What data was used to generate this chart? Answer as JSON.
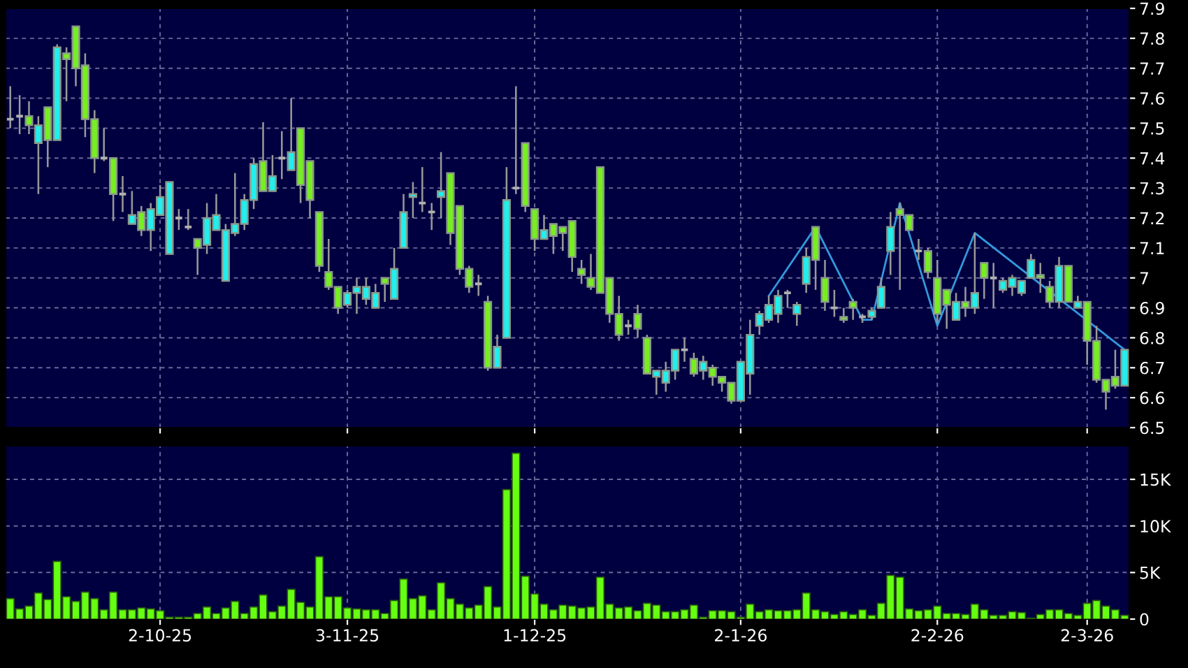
{
  "chart_data": [
    {
      "type": "candlestick",
      "categories": [
        null,
        null,
        null,
        null,
        null,
        null,
        null,
        null,
        null,
        null,
        null,
        null,
        null,
        null,
        null,
        null,
        null,
        null,
        null,
        null,
        null,
        null,
        null,
        null,
        null,
        null,
        null,
        null,
        null,
        null,
        null,
        null,
        null,
        null,
        null,
        null,
        null,
        null,
        null,
        null,
        null,
        null,
        null,
        null,
        null,
        null,
        null,
        null,
        null,
        null,
        null,
        null,
        null,
        null,
        null,
        null,
        null,
        null,
        null,
        null,
        null,
        null,
        null,
        null,
        null,
        null,
        null,
        null,
        null,
        null,
        null,
        null,
        null,
        null,
        null,
        null,
        null,
        null,
        null,
        null,
        null,
        null,
        null,
        null,
        null,
        null,
        null,
        null,
        null,
        null,
        null,
        null,
        null,
        null,
        null,
        null,
        null,
        null,
        null,
        null,
        null,
        null,
        null,
        null,
        null,
        null,
        null,
        null,
        null,
        null,
        null,
        null,
        null,
        null,
        null,
        null,
        null,
        null,
        null,
        null
      ],
      "ohlc": [
        [
          7.53,
          7.64,
          7.5,
          7.53
        ],
        [
          7.54,
          7.61,
          7.48,
          7.54
        ],
        [
          7.54,
          7.59,
          7.48,
          7.51
        ],
        [
          7.45,
          7.54,
          7.28,
          7.51
        ],
        [
          7.57,
          7.57,
          7.37,
          7.46
        ],
        [
          7.46,
          7.78,
          7.46,
          7.77
        ],
        [
          7.75,
          7.77,
          7.59,
          7.73
        ],
        [
          7.84,
          7.84,
          7.64,
          7.7
        ],
        [
          7.71,
          7.75,
          7.47,
          7.53
        ],
        [
          7.53,
          7.56,
          7.35,
          7.4
        ],
        [
          7.4,
          7.5,
          7.39,
          7.4
        ],
        [
          7.4,
          7.4,
          7.19,
          7.28
        ],
        [
          7.28,
          7.34,
          7.22,
          7.28
        ],
        [
          7.18,
          7.29,
          7.18,
          7.21
        ],
        [
          7.22,
          7.24,
          7.14,
          7.16
        ],
        [
          7.16,
          7.25,
          7.09,
          7.23
        ],
        [
          7.21,
          7.31,
          7.21,
          7.27
        ],
        [
          7.08,
          7.32,
          7.08,
          7.32
        ],
        [
          7.2,
          7.23,
          7.16,
          7.2
        ],
        [
          7.17,
          7.23,
          7.16,
          7.17
        ],
        [
          7.13,
          7.13,
          7.01,
          7.1
        ],
        [
          7.11,
          7.25,
          7.08,
          7.2
        ],
        [
          7.16,
          7.28,
          7.16,
          7.21
        ],
        [
          6.99,
          7.18,
          6.99,
          7.16
        ],
        [
          7.15,
          7.35,
          7.14,
          7.18
        ],
        [
          7.18,
          7.28,
          7.16,
          7.26
        ],
        [
          7.26,
          7.4,
          7.23,
          7.38
        ],
        [
          7.39,
          7.52,
          7.29,
          7.29
        ],
        [
          7.29,
          7.41,
          7.29,
          7.34
        ],
        [
          7.4,
          7.49,
          7.33,
          7.4
        ],
        [
          7.36,
          7.6,
          7.36,
          7.42
        ],
        [
          7.5,
          7.5,
          7.25,
          7.31
        ],
        [
          7.39,
          7.39,
          7.2,
          7.26
        ],
        [
          7.22,
          7.22,
          7.02,
          7.04
        ],
        [
          7.02,
          7.13,
          6.96,
          6.97
        ],
        [
          6.97,
          6.97,
          6.88,
          6.9
        ],
        [
          6.91,
          6.96,
          6.9,
          6.95
        ],
        [
          6.95,
          7.0,
          6.88,
          6.97
        ],
        [
          6.93,
          7.0,
          6.91,
          6.97
        ],
        [
          6.9,
          6.98,
          6.9,
          6.95
        ],
        [
          7.0,
          7.0,
          6.92,
          6.98
        ],
        [
          6.93,
          7.1,
          6.93,
          7.03
        ],
        [
          7.1,
          7.28,
          7.1,
          7.22
        ],
        [
          7.27,
          7.32,
          7.2,
          7.28
        ],
        [
          7.25,
          7.37,
          7.22,
          7.25
        ],
        [
          7.22,
          7.25,
          7.16,
          7.22
        ],
        [
          7.27,
          7.42,
          7.2,
          7.29
        ],
        [
          7.35,
          7.35,
          7.11,
          7.15
        ],
        [
          7.24,
          7.24,
          7.01,
          7.03
        ],
        [
          7.03,
          7.04,
          6.95,
          6.97
        ],
        [
          6.98,
          7.01,
          6.94,
          6.98
        ],
        [
          6.92,
          6.94,
          6.69,
          6.7
        ],
        [
          6.7,
          6.81,
          6.7,
          6.77
        ],
        [
          6.8,
          7.37,
          6.8,
          7.26
        ],
        [
          7.3,
          7.64,
          7.28,
          7.3
        ],
        [
          7.45,
          7.45,
          7.22,
          7.24
        ],
        [
          7.23,
          7.23,
          7.09,
          7.13
        ],
        [
          7.13,
          7.21,
          7.13,
          7.16
        ],
        [
          7.18,
          7.18,
          7.08,
          7.14
        ],
        [
          7.17,
          7.17,
          7.09,
          7.15
        ],
        [
          7.19,
          7.19,
          7.02,
          7.07
        ],
        [
          7.03,
          7.06,
          6.98,
          7.01
        ],
        [
          7.0,
          7.08,
          6.96,
          6.97
        ],
        [
          7.37,
          7.37,
          6.95,
          6.95
        ],
        [
          7.0,
          7.0,
          6.85,
          6.88
        ],
        [
          6.88,
          6.94,
          6.79,
          6.81
        ],
        [
          6.84,
          6.86,
          6.81,
          6.84
        ],
        [
          6.88,
          6.91,
          6.8,
          6.83
        ],
        [
          6.8,
          6.81,
          6.68,
          6.68
        ],
        [
          6.67,
          6.69,
          6.61,
          6.69
        ],
        [
          6.65,
          6.72,
          6.62,
          6.69
        ],
        [
          6.69,
          6.76,
          6.66,
          6.76
        ],
        [
          6.76,
          6.8,
          6.72,
          6.76
        ],
        [
          6.73,
          6.75,
          6.67,
          6.68
        ],
        [
          6.69,
          6.74,
          6.66,
          6.72
        ],
        [
          6.7,
          6.71,
          6.64,
          6.67
        ],
        [
          6.67,
          6.67,
          6.62,
          6.65
        ],
        [
          6.65,
          6.65,
          6.58,
          6.59
        ],
        [
          6.59,
          6.72,
          6.59,
          6.72
        ],
        [
          6.68,
          6.86,
          6.61,
          6.81
        ],
        [
          6.84,
          6.89,
          6.81,
          6.88
        ],
        [
          6.86,
          6.94,
          6.85,
          6.91
        ],
        [
          6.88,
          6.96,
          6.85,
          6.94
        ],
        [
          6.95,
          6.96,
          6.9,
          6.95
        ],
        [
          6.88,
          6.92,
          6.84,
          6.91
        ],
        [
          6.98,
          7.1,
          6.95,
          7.07
        ],
        [
          7.17,
          7.17,
          6.96,
          7.06
        ],
        [
          7.0,
          7.06,
          6.89,
          6.92
        ],
        [
          6.9,
          6.96,
          6.87,
          6.9
        ],
        [
          6.87,
          6.9,
          6.85,
          6.86
        ],
        [
          6.92,
          6.93,
          6.86,
          6.9
        ],
        [
          6.87,
          6.88,
          6.85,
          6.87
        ],
        [
          6.87,
          6.9,
          6.86,
          6.89
        ],
        [
          6.9,
          7.0,
          6.9,
          6.97
        ],
        [
          7.09,
          7.22,
          7.01,
          7.17
        ],
        [
          7.23,
          7.25,
          6.96,
          7.21
        ],
        [
          7.21,
          7.21,
          7.16,
          7.16
        ],
        [
          7.09,
          7.13,
          7.06,
          7.09
        ],
        [
          7.09,
          7.1,
          7.0,
          7.02
        ],
        [
          7.0,
          7.06,
          6.85,
          6.88
        ],
        [
          6.96,
          6.96,
          6.83,
          6.91
        ],
        [
          6.86,
          6.95,
          6.86,
          6.92
        ],
        [
          6.92,
          6.97,
          6.87,
          6.9
        ],
        [
          6.9,
          7.15,
          6.88,
          6.95
        ],
        [
          7.05,
          7.05,
          6.93,
          7.0
        ],
        [
          7.0,
          7.05,
          6.9,
          7.0
        ],
        [
          6.96,
          7.0,
          6.95,
          6.99
        ],
        [
          6.97,
          7.01,
          6.94,
          7.0
        ],
        [
          6.95,
          6.99,
          6.94,
          6.99
        ],
        [
          7.0,
          7.08,
          7.0,
          7.06
        ],
        [
          7.01,
          7.05,
          6.95,
          7.0
        ],
        [
          6.97,
          6.99,
          6.9,
          6.92
        ],
        [
          6.92,
          7.07,
          6.9,
          7.04
        ],
        [
          7.04,
          7.04,
          6.92,
          6.92
        ],
        [
          6.9,
          6.94,
          6.9,
          6.92
        ],
        [
          6.92,
          6.92,
          6.71,
          6.79
        ],
        [
          6.79,
          6.84,
          6.65,
          6.66
        ],
        [
          6.66,
          6.66,
          6.56,
          6.62
        ],
        [
          6.67,
          6.76,
          6.63,
          6.64
        ],
        [
          6.64,
          6.76,
          6.64,
          6.76
        ]
      ],
      "colors": [
        "#b0b0b0",
        "#b0b0b0",
        "#77ee22",
        "#22eeee",
        "#77ee22",
        "#22eeee",
        "#77ee22",
        "#77ee22",
        "#77ee22",
        "#77ee22",
        "#b0b0b0",
        "#77ee22",
        "#b0b0b0",
        "#22eeee",
        "#77ee22",
        "#22eeee",
        "#22eeee",
        "#22eeee",
        "#b0b0b0",
        "#b0b0b0",
        "#77ee22",
        "#22eeee",
        "#22eeee",
        "#22eeee",
        "#22eeee",
        "#22eeee",
        "#22eeee",
        "#77ee22",
        "#22eeee",
        "#b0b0b0",
        "#22eeee",
        "#77ee22",
        "#77ee22",
        "#77ee22",
        "#77ee22",
        "#77ee22",
        "#22eeee",
        "#22eeee",
        "#22eeee",
        "#22eeee",
        "#77ee22",
        "#22eeee",
        "#22eeee",
        "#22eeee",
        "#b0b0b0",
        "#b0b0b0",
        "#22eeee",
        "#77ee22",
        "#77ee22",
        "#77ee22",
        "#b0b0b0",
        "#77ee22",
        "#22eeee",
        "#22eeee",
        "#b0b0b0",
        "#77ee22",
        "#77ee22",
        "#22eeee",
        "#77ee22",
        "#77ee22",
        "#77ee22",
        "#77ee22",
        "#77ee22",
        "#77ee22",
        "#77ee22",
        "#77ee22",
        "#b0b0b0",
        "#77ee22",
        "#77ee22",
        "#22eeee",
        "#22eeee",
        "#22eeee",
        "#b0b0b0",
        "#77ee22",
        "#22eeee",
        "#77ee22",
        "#77ee22",
        "#77ee22",
        "#22eeee",
        "#22eeee",
        "#22eeee",
        "#22eeee",
        "#22eeee",
        "#b0b0b0",
        "#22eeee",
        "#22eeee",
        "#77ee22",
        "#77ee22",
        "#b0b0b0",
        "#77ee22",
        "#77ee22",
        "#b0b0b0",
        "#22eeee",
        "#22eeee",
        "#22eeee",
        "#77ee22",
        "#77ee22",
        "#b0b0b0",
        "#77ee22",
        "#77ee22",
        "#77ee22",
        "#22eeee",
        "#77ee22",
        "#22eeee",
        "#77ee22",
        "#b0b0b0",
        "#22eeee",
        "#22eeee",
        "#22eeee",
        "#22eeee",
        "#77ee22",
        "#77ee22",
        "#22eeee",
        "#77ee22",
        "#22eeee",
        "#77ee22",
        "#77ee22",
        "#77ee22",
        "#77ee22",
        "#22eeee"
      ],
      "series": [
        {
          "type": "line",
          "color": "#3399dd",
          "values": [
            null,
            null,
            null,
            null,
            null,
            null,
            null,
            null,
            null,
            null,
            null,
            null,
            null,
            null,
            null,
            null,
            null,
            null,
            null,
            null,
            null,
            null,
            null,
            null,
            null,
            null,
            null,
            null,
            null,
            null,
            null,
            null,
            null,
            null,
            null,
            null,
            null,
            null,
            null,
            null,
            null,
            null,
            null,
            null,
            null,
            null,
            null,
            null,
            null,
            null,
            null,
            null,
            null,
            null,
            null,
            null,
            null,
            null,
            null,
            null,
            null,
            null,
            null,
            null,
            null,
            null,
            null,
            null,
            null,
            null,
            null,
            null,
            null,
            null,
            null,
            null,
            null,
            null,
            null,
            null,
            null,
            6.94,
            null,
            null,
            null,
            null,
            7.17,
            null,
            null,
            null,
            null,
            6.86,
            6.86,
            null,
            null,
            7.25,
            null,
            null,
            null,
            6.84,
            null,
            null,
            null,
            7.15,
            null,
            null,
            null,
            null,
            null,
            null,
            null,
            null,
            null,
            null,
            null,
            null,
            null,
            null,
            null,
            6.76
          ]
        }
      ],
      "ylim": [
        6.5,
        7.9
      ],
      "yticks": [
        6.5,
        6.6,
        6.7,
        6.8,
        6.9,
        7,
        7.1,
        7.2,
        7.3,
        7.4,
        7.5,
        7.6,
        7.7,
        7.8,
        7.9
      ],
      "grid": true,
      "tick_labels": "y"
    },
    {
      "type": "bar",
      "categories": [
        null,
        null,
        null,
        null,
        null,
        null,
        null,
        null,
        null,
        null,
        null,
        null,
        null,
        null,
        null,
        null,
        "2-10-25",
        null,
        null,
        null,
        null,
        null,
        null,
        null,
        null,
        null,
        null,
        null,
        null,
        null,
        null,
        null,
        null,
        null,
        null,
        null,
        "3-11-25",
        null,
        null,
        null,
        null,
        null,
        null,
        null,
        null,
        null,
        null,
        null,
        null,
        null,
        null,
        null,
        null,
        null,
        null,
        null,
        "1-12-25",
        null,
        null,
        null,
        null,
        null,
        null,
        null,
        null,
        null,
        null,
        null,
        null,
        null,
        null,
        null,
        null,
        null,
        null,
        null,
        null,
        null,
        "2-1-26",
        null,
        null,
        null,
        null,
        null,
        null,
        null,
        null,
        null,
        null,
        null,
        null,
        null,
        null,
        null,
        null,
        null,
        null,
        null,
        null,
        "2-2-26",
        null,
        null,
        null,
        null,
        null,
        null,
        null,
        null,
        null,
        null,
        null,
        null,
        null,
        null,
        null,
        "2-3-26",
        null,
        null,
        null,
        null
      ],
      "values": [
        2200,
        1100,
        1400,
        2800,
        2100,
        6200,
        2400,
        1900,
        2900,
        2200,
        1000,
        2900,
        1000,
        1000,
        1200,
        1100,
        900,
        200,
        200,
        200,
        600,
        1300,
        600,
        1200,
        1900,
        600,
        1300,
        2600,
        800,
        1400,
        3200,
        1800,
        1300,
        6700,
        2400,
        2400,
        1200,
        1100,
        1000,
        1000,
        600,
        2000,
        4300,
        2200,
        2500,
        1000,
        3900,
        2200,
        1600,
        1200,
        1500,
        3500,
        1300,
        13900,
        17800,
        4600,
        2700,
        1600,
        1000,
        1500,
        1400,
        1200,
        1300,
        4500,
        1600,
        1200,
        1300,
        900,
        1700,
        1500,
        800,
        800,
        1000,
        1500,
        200,
        900,
        900,
        800,
        200,
        1600,
        800,
        1000,
        900,
        900,
        1000,
        2800,
        1000,
        800,
        500,
        800,
        500,
        1000,
        400,
        1700,
        4700,
        4500,
        1100,
        900,
        1000,
        1400,
        600,
        600,
        500,
        1600,
        1000,
        400,
        400,
        800,
        700,
        100,
        500,
        1000,
        1000,
        600,
        400,
        1700,
        2000,
        1400,
        1000,
        400
      ],
      "color": "#66ff11",
      "ylim": [
        0,
        18600
      ],
      "yticks": [
        0,
        {
          "value": 5000,
          "label": "5K"
        },
        {
          "value": 10000,
          "label": "10K"
        },
        {
          "value": 15000,
          "label": "15K"
        }
      ],
      "grid": true
    }
  ]
}
